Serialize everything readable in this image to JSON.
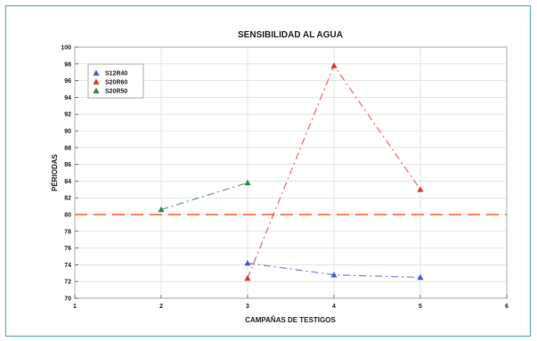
{
  "chart_data": {
    "type": "line",
    "title": "SENSIBILIDAD AL AGUA",
    "xlabel": "CAMPAÑAS DE TESTIGOS",
    "ylabel": "PÉRIODAS",
    "xlim": [
      1,
      6
    ],
    "ylim": [
      70,
      100
    ],
    "xticks": [
      1,
      2,
      3,
      4,
      5,
      6
    ],
    "yticks": [
      70,
      72,
      74,
      76,
      78,
      80,
      82,
      84,
      86,
      88,
      90,
      92,
      94,
      96,
      98,
      100
    ],
    "grid": true,
    "legend_position": "top-left",
    "reference_line": {
      "y": 80,
      "color": "#f08a5d"
    },
    "series": [
      {
        "name": "S12R40",
        "color": "#4a5fd0",
        "x": [
          3,
          4,
          5
        ],
        "y": [
          74.2,
          72.8,
          72.5
        ]
      },
      {
        "name": "S20R60",
        "color": "#e03b2e",
        "x": [
          3,
          4,
          5
        ],
        "y": [
          72.4,
          97.8,
          83.0
        ]
      },
      {
        "name": "S20R50",
        "color": "#2f8a4a",
        "x": [
          2,
          3
        ],
        "y": [
          80.6,
          83.8
        ]
      }
    ]
  }
}
